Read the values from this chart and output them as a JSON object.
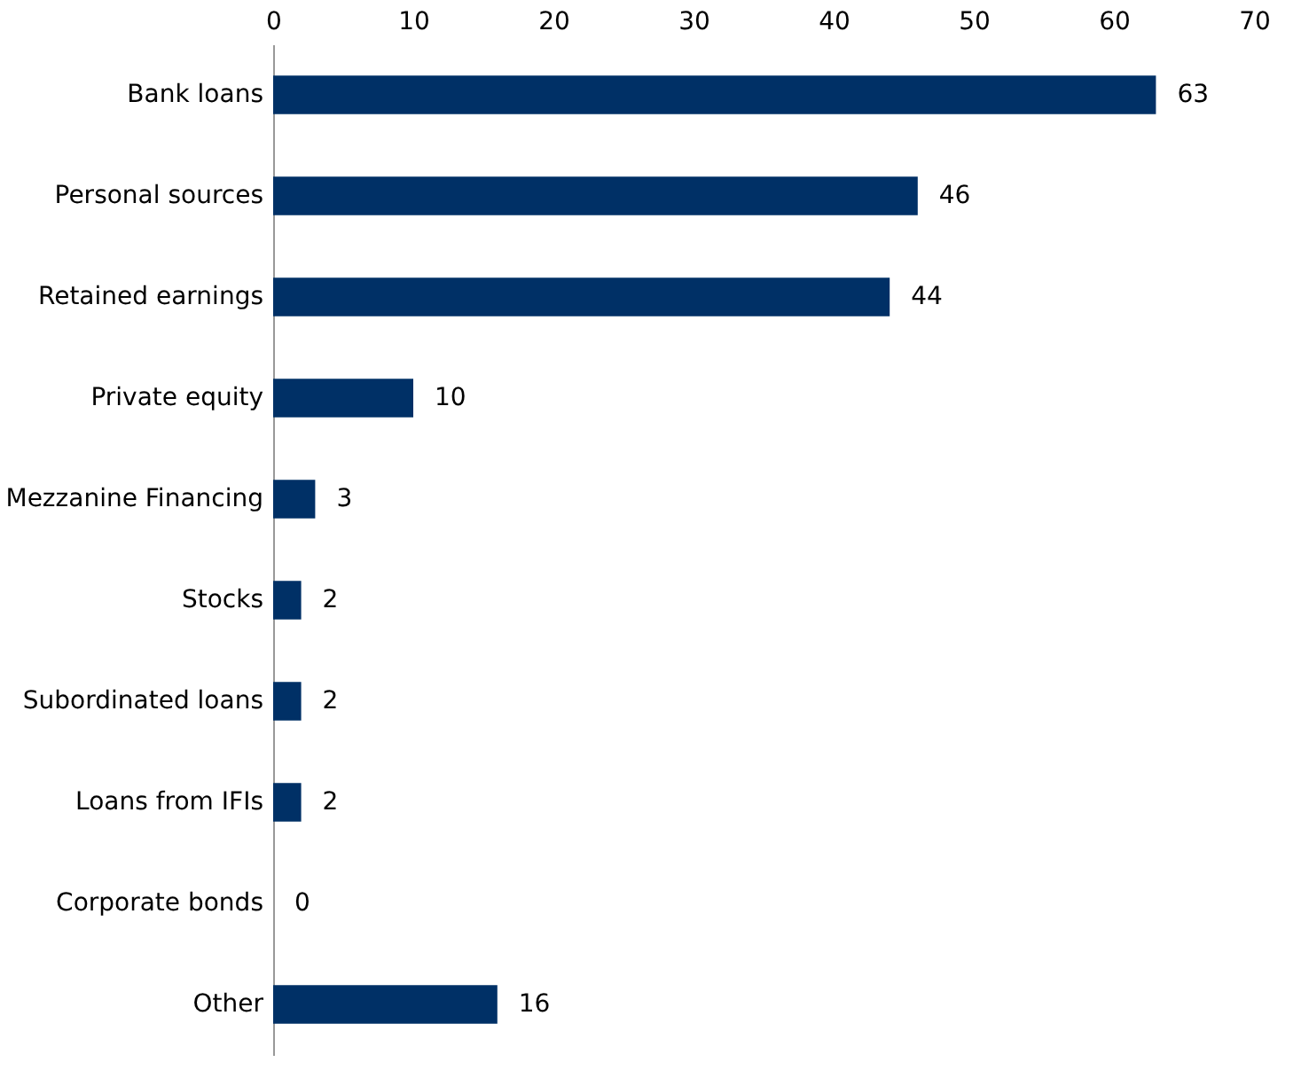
{
  "chart_data": {
    "type": "bar",
    "orientation": "horizontal",
    "categories": [
      "Bank loans",
      "Personal sources",
      "Retained earnings",
      "Private equity",
      "Mezzanine Financing",
      "Stocks",
      "Subordinated loans",
      "Loans from IFIs",
      "Corporate bonds",
      "Other"
    ],
    "values": [
      63,
      46,
      44,
      10,
      3,
      2,
      2,
      2,
      0,
      16
    ],
    "color": "#003066",
    "xlim": [
      0,
      70
    ],
    "xticks": [
      0,
      10,
      20,
      30,
      40,
      50,
      60,
      70
    ],
    "data_labels": true,
    "grid": false
  }
}
